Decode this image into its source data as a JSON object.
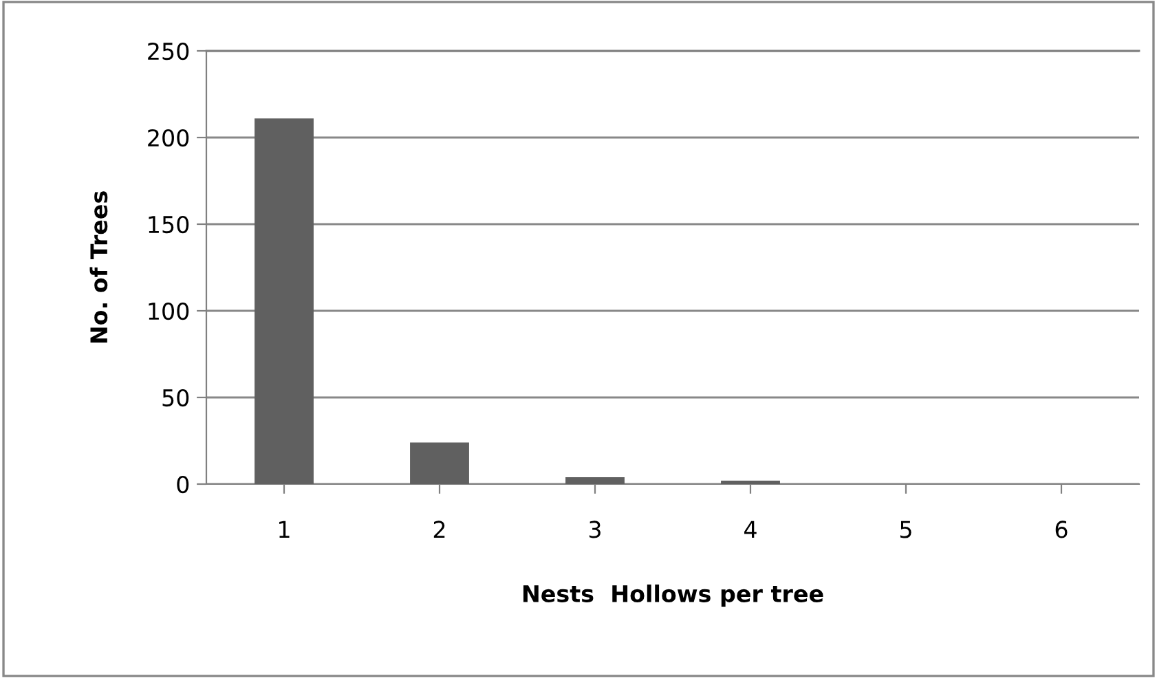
{
  "chart_data": {
    "type": "bar",
    "xlabel": "Nests  Hollows per tree",
    "ylabel": "No. of Trees",
    "categories": [
      "1",
      "2",
      "3",
      "4",
      "5",
      "6"
    ],
    "values": [
      211,
      24,
      4,
      2,
      0,
      0
    ],
    "color": "#606060",
    "ylim": [
      0,
      250
    ],
    "yticks": [
      0,
      50,
      100,
      150,
      200,
      250
    ],
    "grid": "y",
    "legend": false
  }
}
